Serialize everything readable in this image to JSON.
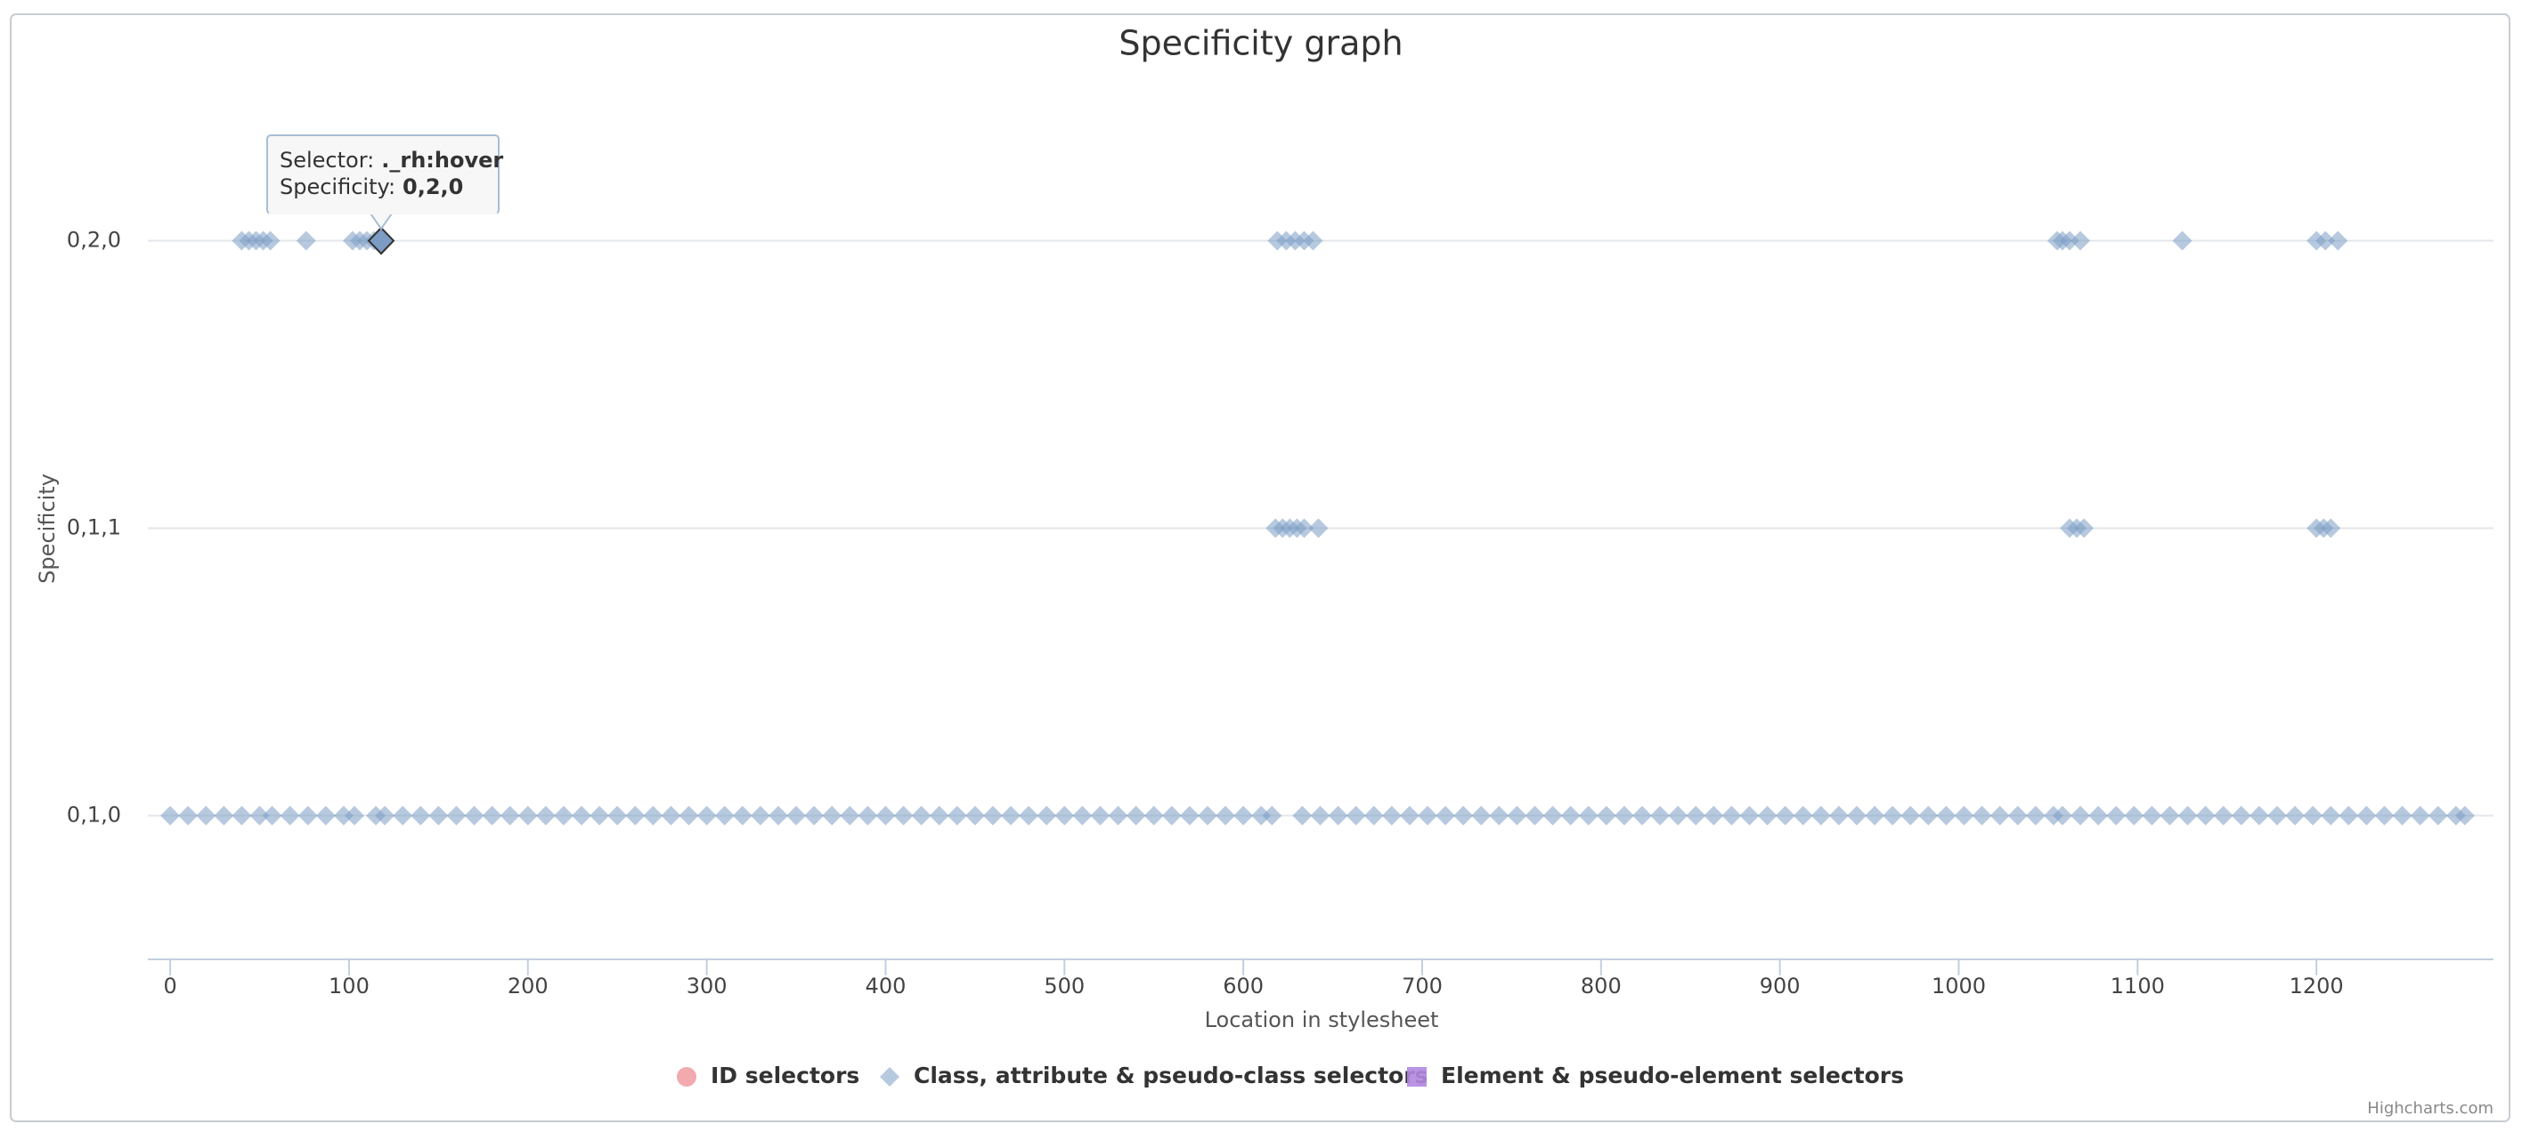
{
  "chart_data": {
    "type": "scatter",
    "title": "Specificity graph",
    "x_label": "Location in stylesheet",
    "y_label": "Specificity",
    "xlim": [
      -12.5,
      1299
    ],
    "xticks": [
      0,
      100,
      200,
      300,
      400,
      500,
      600,
      700,
      800,
      900,
      1000,
      1100,
      1200
    ],
    "ylim": [
      -0.5,
      2.5
    ],
    "yticks": [
      {
        "value": 0,
        "label": "0,1,0"
      },
      {
        "value": 1,
        "label": "0,1,1"
      },
      {
        "value": 2,
        "label": "0,2,0"
      }
    ],
    "grid": true,
    "legend": "bottom",
    "series": [
      {
        "name": "ID selectors",
        "color": "#f1a1a6",
        "marker": "circle",
        "x": [],
        "values": []
      },
      {
        "name": "Class, attribute & pseudo-class selectors",
        "color": "#7c9cc4",
        "marker": "diamond",
        "x": [
          0,
          10,
          20,
          30,
          40,
          50,
          57,
          67,
          77,
          87,
          97,
          103,
          115,
          120,
          130,
          140,
          150,
          160,
          170,
          180,
          190,
          200,
          210,
          220,
          230,
          240,
          250,
          260,
          270,
          280,
          290,
          300,
          310,
          320,
          330,
          340,
          350,
          360,
          370,
          380,
          390,
          400,
          410,
          420,
          430,
          440,
          450,
          460,
          470,
          480,
          490,
          500,
          510,
          520,
          530,
          540,
          550,
          560,
          570,
          580,
          590,
          600,
          610,
          616,
          633,
          643,
          653,
          663,
          673,
          683,
          693,
          703,
          713,
          723,
          733,
          743,
          753,
          763,
          773,
          783,
          793,
          803,
          813,
          823,
          833,
          843,
          853,
          863,
          873,
          883,
          893,
          903,
          913,
          923,
          933,
          943,
          953,
          963,
          973,
          983,
          993,
          1003,
          1013,
          1023,
          1033,
          1043,
          1053,
          1058,
          1068,
          1078,
          1088,
          1098,
          1108,
          1118,
          1128,
          1138,
          1148,
          1158,
          1168,
          1178,
          1188,
          1198,
          1208,
          1218,
          1228,
          1238,
          1248,
          1258,
          1268,
          1278,
          1283,
          618,
          622,
          626,
          630,
          634,
          642,
          1062,
          1066,
          1070,
          1200,
          1204,
          1208,
          40,
          44,
          48,
          52,
          56,
          76,
          102,
          106,
          110,
          114,
          118,
          619,
          624,
          629,
          634,
          639,
          1055,
          1058,
          1062,
          1068,
          1125,
          1200,
          1205,
          1212
        ],
        "values": [
          0,
          0,
          0,
          0,
          0,
          0,
          0,
          0,
          0,
          0,
          0,
          0,
          0,
          0,
          0,
          0,
          0,
          0,
          0,
          0,
          0,
          0,
          0,
          0,
          0,
          0,
          0,
          0,
          0,
          0,
          0,
          0,
          0,
          0,
          0,
          0,
          0,
          0,
          0,
          0,
          0,
          0,
          0,
          0,
          0,
          0,
          0,
          0,
          0,
          0,
          0,
          0,
          0,
          0,
          0,
          0,
          0,
          0,
          0,
          0,
          0,
          0,
          0,
          0,
          0,
          0,
          0,
          0,
          0,
          0,
          0,
          0,
          0,
          0,
          0,
          0,
          0,
          0,
          0,
          0,
          0,
          0,
          0,
          0,
          0,
          0,
          0,
          0,
          0,
          0,
          0,
          0,
          0,
          0,
          0,
          0,
          0,
          0,
          0,
          0,
          0,
          0,
          0,
          0,
          0,
          0,
          0,
          0,
          0,
          0,
          0,
          0,
          0,
          0,
          0,
          0,
          0,
          0,
          0,
          0,
          0,
          0,
          0,
          0,
          0,
          0,
          0,
          0,
          0,
          0,
          0,
          1,
          1,
          1,
          1,
          1,
          1,
          1,
          1,
          1,
          1,
          1,
          1,
          2,
          2,
          2,
          2,
          2,
          2,
          2,
          2,
          2,
          2,
          2,
          2,
          2,
          2,
          2,
          2,
          2,
          2,
          2,
          2,
          2,
          2,
          2,
          2
        ]
      },
      {
        "name": "Element & pseudo-element selectors",
        "color": "#b388e0",
        "marker": "square",
        "x": [],
        "values": []
      }
    ],
    "tooltip": {
      "selector_label": "Selector:",
      "selector": "._rh:hover",
      "specificity_label": "Specificity:",
      "specificity": "0,2,0"
    },
    "credit": "Highcharts.com"
  }
}
